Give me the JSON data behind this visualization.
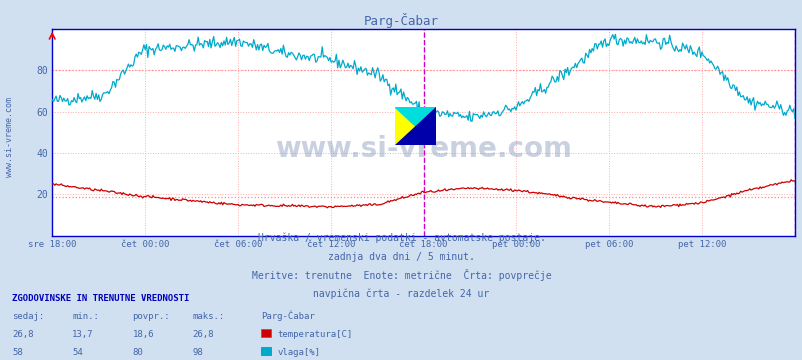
{
  "title": "Parg-Čabar",
  "fig_bg_color": "#d0e0f0",
  "plot_bg_color": "#ffffff",
  "x_labels": [
    "sre 18:00",
    "čet 00:00",
    "čet 06:00",
    "čet 12:00",
    "čet 18:00",
    "pet 00:00",
    "pet 06:00",
    "pet 12:00"
  ],
  "y_ticks": [
    20,
    40,
    60,
    80
  ],
  "y_min": 0,
  "y_max": 100,
  "avg_temp": 18.6,
  "avg_hum": 80.0,
  "temp_color": "#cc0000",
  "hum_color": "#00aacc",
  "avg_line_color": "#ff8888",
  "grid_color": "#ffaaaa",
  "vline_color": "#cc00cc",
  "border_color": "#0000cc",
  "text_color": "#4466aa",
  "sidebar_text": "www.si-vreme.com",
  "watermark": "www.si-vreme.com",
  "subtitle1": "Hrvaška / vremenski podatki - avtomatske postaje.",
  "subtitle2": "zadnja dva dni / 5 minut.",
  "subtitle3": "Meritve: trenutne  Enote: metrične  Črta: povprečje",
  "subtitle4": "navpična črta - razdelek 24 ur",
  "table_header": "ZGODOVINSKE IN TRENUTNE VREDNOSTI",
  "col_headers": [
    "sedaj:",
    "min.:",
    "povpr.:",
    "maks.:"
  ],
  "temp_row": [
    "26,8",
    "13,7",
    "18,6",
    "26,8"
  ],
  "hum_row": [
    "58",
    "54",
    "80",
    "98"
  ],
  "legend_temp": "temperatura[C]",
  "legend_hum": "vlaga[%]",
  "station_label": "Parg-Čabar"
}
